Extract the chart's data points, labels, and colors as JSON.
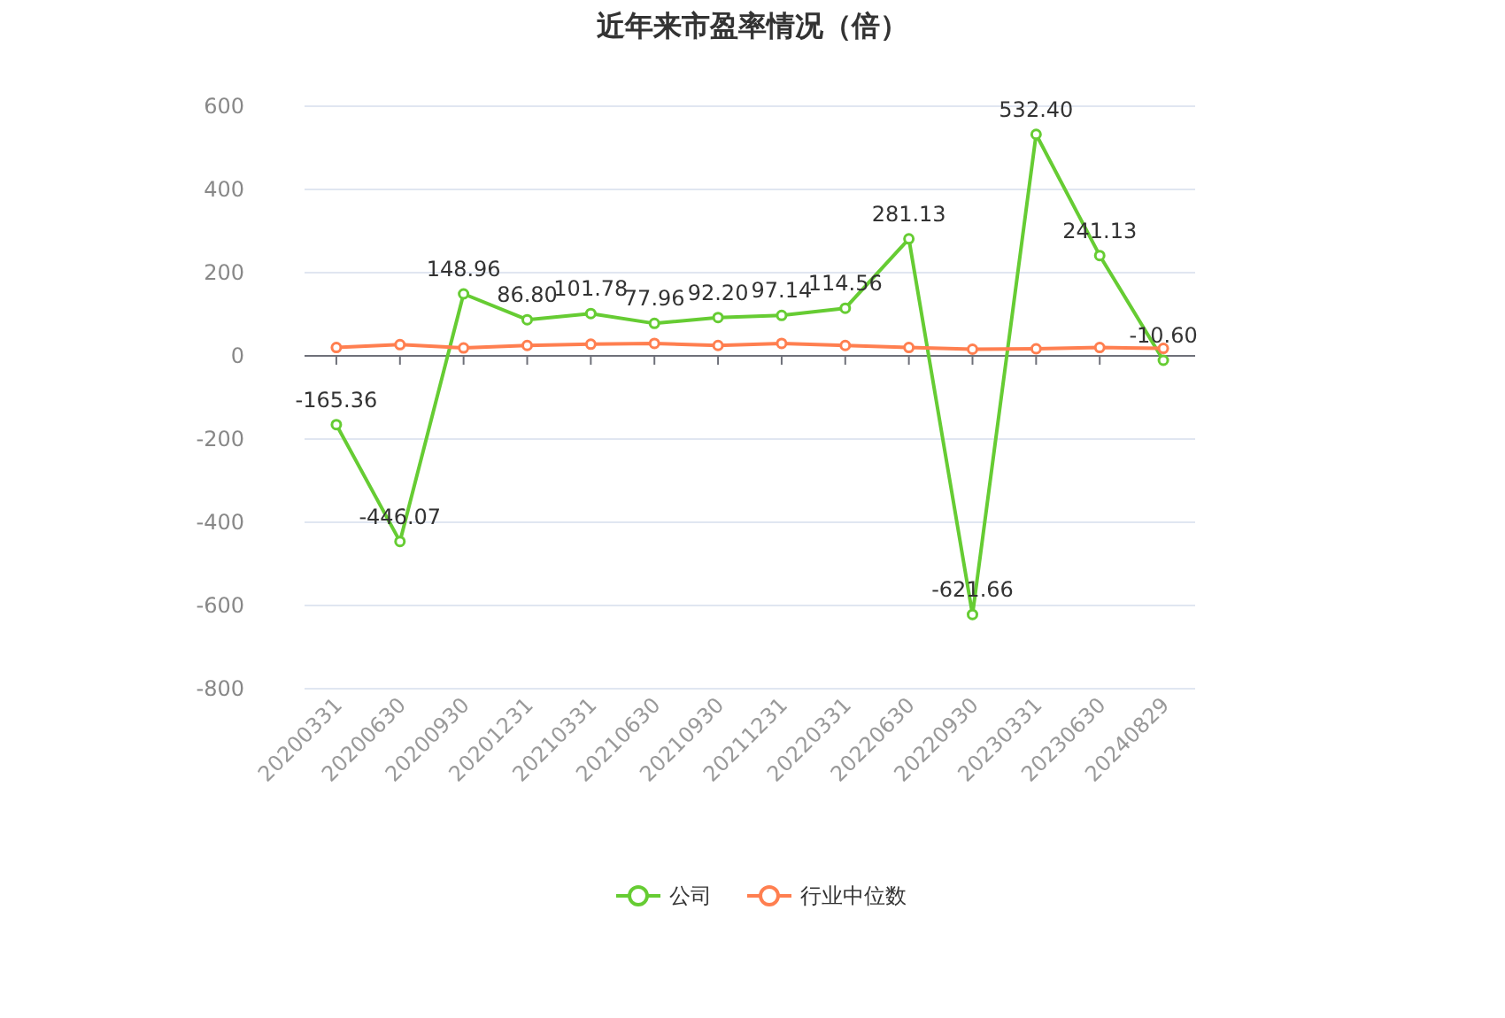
{
  "chart_data": {
    "type": "line",
    "title": "近年来市盈率情况（倍）",
    "categories": [
      "20200331",
      "20200630",
      "20200930",
      "20201231",
      "20210331",
      "20210630",
      "20210930",
      "20211231",
      "20220331",
      "20220630",
      "20220930",
      "20230331",
      "20230630",
      "20240829"
    ],
    "series": [
      {
        "name": "公司",
        "color": "#66cc33",
        "values": [
          -165.36,
          -446.07,
          148.96,
          86.8,
          101.78,
          77.96,
          92.2,
          97.14,
          114.56,
          281.13,
          -621.66,
          532.4,
          241.13,
          -10.6
        ],
        "value_labels": [
          "-165.36",
          "-446.07",
          "148.96",
          "86.80",
          "101.78",
          "77.96",
          "92.20",
          "97.14",
          "114.56",
          "281.13",
          "-621.66",
          "532.40",
          "241.13",
          "-10.60"
        ]
      },
      {
        "name": "行业中位数",
        "color": "#ff7f50",
        "values": [
          20,
          27,
          19,
          25,
          28,
          30,
          25,
          30,
          25,
          20,
          16,
          17,
          20,
          18
        ]
      }
    ],
    "ylim": [
      -800,
      600
    ],
    "yticks": [
      -800,
      -600,
      -400,
      -200,
      0,
      200,
      400,
      600
    ],
    "grid": "y",
    "legend": "bottom",
    "marker": "circle"
  }
}
